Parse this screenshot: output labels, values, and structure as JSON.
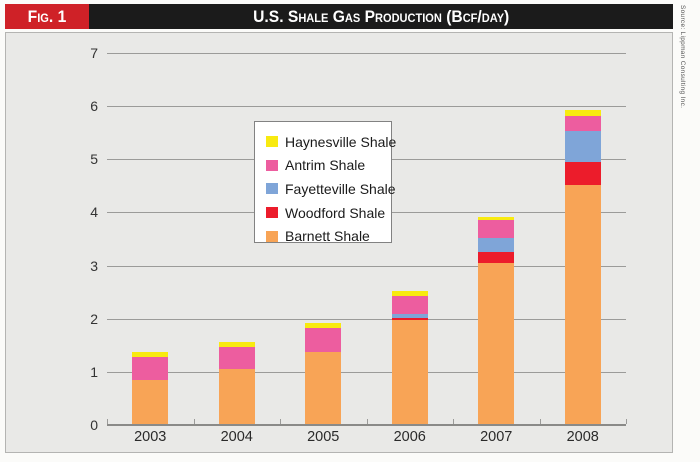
{
  "figure": {
    "tag": "Fig. 1",
    "title": "U.S. Shale Gas Production (Bcf/day)",
    "source": "Source: Lippman Consulting Inc."
  },
  "chart_data": {
    "type": "bar",
    "stacked": true,
    "stack_order": "bottom-to-top",
    "title": "U.S. Shale Gas Production (Bcf/day)",
    "xlabel": "",
    "ylabel": "Bcf/day",
    "categories": [
      "2003",
      "2004",
      "2005",
      "2006",
      "2007",
      "2008"
    ],
    "series": [
      {
        "name": "Barnett Shale",
        "color": "#f8a456",
        "values": [
          0.85,
          1.05,
          1.38,
          1.97,
          3.04,
          4.51
        ]
      },
      {
        "name": "Woodford Shale",
        "color": "#ec1c2b",
        "values": [
          0.0,
          0.0,
          0.0,
          0.05,
          0.21,
          0.43
        ]
      },
      {
        "name": "Fayetteville Shale",
        "color": "#7fa5d8",
        "values": [
          0.0,
          0.0,
          0.0,
          0.06,
          0.26,
          0.6
        ]
      },
      {
        "name": "Antrim Shale",
        "color": "#ed5d9f",
        "values": [
          0.43,
          0.42,
          0.44,
          0.35,
          0.35,
          0.28
        ]
      },
      {
        "name": "Haynesville Shale",
        "color": "#f8ea10",
        "values": [
          0.09,
          0.09,
          0.09,
          0.09,
          0.06,
          0.11
        ]
      }
    ],
    "totals": [
      1.37,
      1.56,
      1.91,
      2.52,
      3.92,
      5.93
    ],
    "legend": [
      "Haynesville Shale",
      "Antrim Shale",
      "Fayetteville Shale",
      "Woodford Shale",
      "Barnett Shale"
    ],
    "legend_position": "upper-middle-left",
    "ylim": [
      0,
      7
    ],
    "yticks": [
      0,
      1,
      2,
      3,
      4,
      5,
      6,
      7
    ],
    "grid": true,
    "plot_bg": "#e9e9e7",
    "grid_color": "#9b9b99",
    "axis_color": "#8a8a88"
  },
  "colors": {
    "fig_tag_bg": "#cf2127",
    "title_bg": "#1b1b1b",
    "panel_border": "#b4b4b2"
  }
}
